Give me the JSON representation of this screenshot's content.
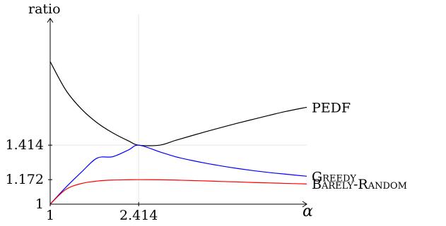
{
  "chart_data": {
    "type": "line",
    "title": "",
    "xlabel": "α",
    "ylabel": "ratio",
    "xlim": [
      1,
      5.1
    ],
    "ylim": [
      1,
      2.2
    ],
    "grid": "partial",
    "x_ticks": [
      {
        "value": 1,
        "label": "1"
      },
      {
        "value": 2.414,
        "label": "2.414"
      }
    ],
    "y_ticks": [
      {
        "value": 1,
        "label": "1"
      },
      {
        "value": 1.172,
        "label": "1.172"
      },
      {
        "value": 1.414,
        "label": "1.414"
      }
    ],
    "gridlines": {
      "vertical_at_x": [
        2.414
      ],
      "horizontal_at_y": [
        1.414
      ]
    },
    "series": [
      {
        "name": "PEDF",
        "color": "#000000",
        "x": [
          1.0,
          1.25,
          1.5,
          1.75,
          2.0,
          2.25,
          2.414,
          2.75,
          3.0,
          3.25,
          3.5,
          3.75,
          4.0,
          4.25,
          4.5,
          4.75,
          5.1
        ],
        "values": [
          2.0,
          1.8,
          1.667,
          1.571,
          1.5,
          1.444,
          1.414,
          1.414,
          1.447,
          1.479,
          1.51,
          1.54,
          1.569,
          1.596,
          1.623,
          1.649,
          1.68
        ]
      },
      {
        "name": "GREEDY",
        "color": "#0000ff",
        "x": [
          1.0,
          1.25,
          1.5,
          1.75,
          2.0,
          2.25,
          2.414,
          2.75,
          3.0,
          3.25,
          3.5,
          3.75,
          4.0,
          4.25,
          4.5,
          4.75,
          5.1
        ],
        "values": [
          1.0,
          1.118,
          1.225,
          1.323,
          1.333,
          1.38,
          1.414,
          1.367,
          1.333,
          1.308,
          1.286,
          1.267,
          1.25,
          1.235,
          1.222,
          1.211,
          1.196
        ]
      },
      {
        "name": "BARELY-RANDOM",
        "color": "#ff0000",
        "x": [
          1.0,
          1.25,
          1.5,
          1.75,
          2.0,
          2.25,
          2.414,
          2.75,
          3.0,
          3.25,
          3.5,
          3.75,
          4.0,
          4.25,
          4.5,
          4.75,
          5.1
        ],
        "values": [
          1.0,
          1.103,
          1.145,
          1.162,
          1.169,
          1.171,
          1.172,
          1.171,
          1.169,
          1.166,
          1.163,
          1.159,
          1.156,
          1.152,
          1.149,
          1.146,
          1.142
        ]
      }
    ],
    "series_labels": [
      {
        "series": "PEDF",
        "text": "PEDF",
        "smallcaps": false
      },
      {
        "series": "GREEDY",
        "text": "Greedy",
        "smallcaps": true
      },
      {
        "series": "BARELY-RANDOM",
        "text": "Barely-Random",
        "smallcaps": true
      }
    ]
  }
}
